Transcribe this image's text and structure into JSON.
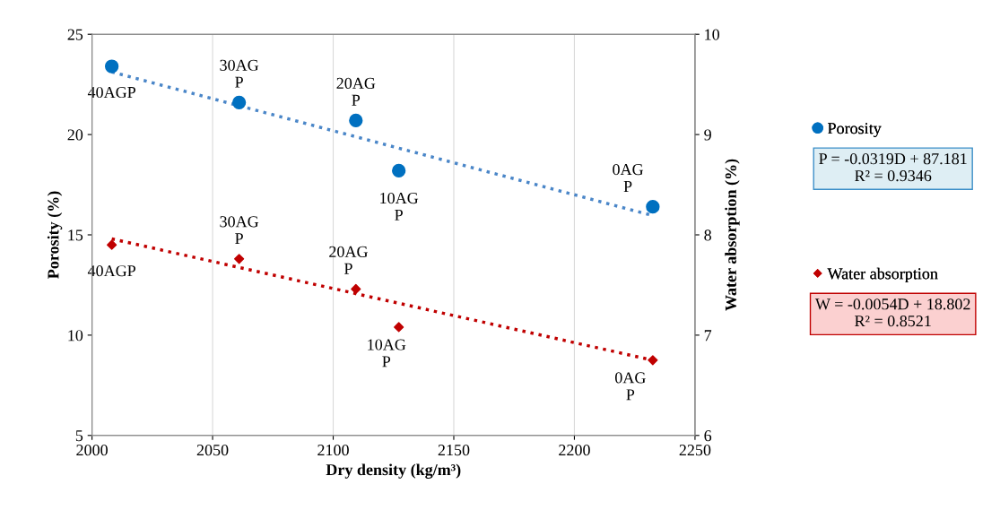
{
  "chart_data": {
    "type": "scatter",
    "xlabel": "Dry density (kg/m³)",
    "ylabel": "Porosity (%)",
    "y2label": "Water absorption (%)",
    "xlim": [
      2000,
      2250
    ],
    "xticks": [
      2000,
      2050,
      2100,
      2150,
      2200,
      2250
    ],
    "ylim": [
      5,
      25
    ],
    "yticks": [
      5,
      10,
      15,
      20,
      25
    ],
    "y2lim": [
      6,
      10
    ],
    "y2ticks": [
      6,
      7,
      8,
      9,
      10
    ],
    "grid": "x",
    "legend": "right",
    "annotations": [
      "P = -0.0319D + 87.181\nR² = 0.9346",
      "W = -0.0054D + 18.802\nR² = 0.8521",
      {
        "text": "40AGP",
        "x": 2008.2,
        "y": 23.4
      },
      {
        "text": "30AG\nP",
        "x": 2061,
        "y": 21.6
      },
      {
        "text": "20AG\nP",
        "x": 2109.4,
        "y": 20.7
      },
      {
        "text": "10AG\nP",
        "x": 2127.2,
        "y": 18.2
      },
      {
        "text": "0AG\nP",
        "x": 2232.5,
        "y": 16.4
      },
      {
        "text": "40AGP",
        "x": 2008.2,
        "y": 14.5
      },
      {
        "text": "30AG\nP",
        "x": 2061,
        "y": 13.8
      },
      {
        "text": "20AG\nP",
        "x": 2109.4,
        "y": 12.3
      },
      {
        "text": "10AG\nP",
        "x": 2127.2,
        "y": 10.4
      },
      {
        "text": "0AG\nP",
        "x": 2232.5,
        "y": 8.75
      }
    ],
    "series": [
      {
        "name": "Porosity",
        "marker": "circle",
        "color": "#0070c0",
        "x": [
          2008.2,
          2061,
          2109.4,
          2127.2,
          2232.5
        ],
        "values": [
          23.4,
          21.6,
          20.7,
          18.2,
          16.4
        ]
      },
      {
        "name": "Water absorption",
        "marker": "diamond",
        "axis": "y2",
        "color": "#c00000",
        "x": [
          2008.2,
          2061,
          2109.4,
          2127.2,
          2232.5
        ],
        "values": [
          7.9,
          7.76,
          7.46,
          7.08,
          6.75
        ]
      },
      {
        "type": "line",
        "line_style": "dotted",
        "color": "#4a86c8",
        "x": [
          2008.2,
          2232.5
        ],
        "values": [
          23.12,
          15.96
        ]
      },
      {
        "type": "line",
        "line_style": "dotted",
        "axis": "y2",
        "color": "#c00000",
        "x": [
          2008.2,
          2232.5
        ],
        "values": [
          7.96,
          6.75
        ]
      }
    ]
  }
}
